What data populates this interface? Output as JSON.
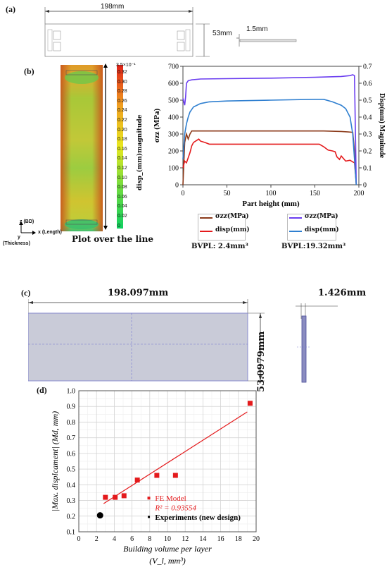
{
  "panel_a": {
    "label": "(a)",
    "length": "198mm",
    "width": "53mm",
    "thickness": "1.5mm"
  },
  "panel_b": {
    "label": "(b)",
    "colorbar_title": "disp_(mm)magnitude",
    "colorbar_top": "3.5×10⁻¹",
    "colorbar_ticks": [
      "0.32",
      "0.30",
      "0.28",
      "0.26",
      "0.24",
      "0.22",
      "0.20",
      "0.18",
      "0.16",
      "0.14",
      "0.12",
      "0.10",
      "0.08",
      "0.06",
      "0.04",
      "0.02",
      "0"
    ],
    "axis_z": "z (BD)",
    "axis_x": "x (Length)",
    "axis_y": "y",
    "axis_thickness": "(Thickness)",
    "plot_caption": "Plot over the line",
    "legend_left": [
      "σzz(MPa)",
      "disp(mm)"
    ],
    "legend_right": [
      "σzz(MPa)",
      "disp(mm)"
    ],
    "bvpl_left": "BVPL: 2.4mm³",
    "bvpl_right": "BVPL:19.32mm³",
    "colors": {
      "brown": "#8b3a1a",
      "red": "#e41a1c",
      "purple": "#6a3df0",
      "blue": "#2f7fd0"
    }
  },
  "panel_c": {
    "label": "(c)",
    "length": "198.097mm",
    "width": "53.0979mm",
    "thickness": "1.426mm"
  },
  "panel_d": {
    "label": "(d)"
  },
  "chart_data": [
    {
      "type": "line",
      "xlabel": "Part height (mm)",
      "ylabel": "σzz (MPa)",
      "y2label": "Disp(mm) Magnitude",
      "xlim": [
        0,
        200
      ],
      "ylim": [
        0,
        700
      ],
      "y2lim": [
        0,
        0.7
      ],
      "x_ticks": [
        0,
        50,
        100,
        150,
        200
      ],
      "y_ticks": [
        0,
        100,
        200,
        300,
        400,
        500,
        600,
        700
      ],
      "y2_ticks": [
        0,
        0.1,
        0.2,
        0.3,
        0.4,
        0.5,
        0.6,
        0.7
      ],
      "series": [
        {
          "name": "σzz(MPa)",
          "color": "#8b3a1a",
          "axis": "left",
          "x": [
            0,
            2,
            4,
            6,
            8,
            10,
            12,
            15,
            20,
            30,
            50,
            80,
            100,
            130,
            160,
            180,
            188,
            193,
            195,
            197
          ],
          "y": [
            0,
            250,
            300,
            270,
            300,
            318,
            318,
            318,
            318,
            318,
            318,
            318,
            318,
            318,
            318,
            315,
            312,
            310,
            200,
            0
          ]
        },
        {
          "name": "disp(mm)",
          "color": "#e41a1c",
          "axis": "left",
          "x": [
            0,
            2,
            4,
            6,
            8,
            10,
            12,
            15,
            18,
            20,
            25,
            30,
            40,
            60,
            80,
            100,
            130,
            155,
            160,
            165,
            170,
            173,
            175,
            178,
            180,
            185,
            190,
            193,
            195,
            197
          ],
          "y": [
            100,
            140,
            130,
            160,
            190,
            230,
            250,
            260,
            270,
            258,
            250,
            240,
            240,
            240,
            240,
            240,
            240,
            240,
            225,
            205,
            200,
            195,
            165,
            150,
            170,
            140,
            145,
            135,
            130,
            10
          ]
        },
        {
          "name": "σzz(MPa)",
          "color": "#6a3df0",
          "axis": "left",
          "x": [
            0,
            2,
            3,
            4,
            6,
            10,
            20,
            50,
            100,
            150,
            180,
            190,
            193,
            195,
            197
          ],
          "y": [
            510,
            470,
            520,
            600,
            615,
            620,
            625,
            627,
            630,
            635,
            640,
            645,
            650,
            645,
            0
          ]
        },
        {
          "name": "disp(mm)",
          "color": "#2f7fd0",
          "axis": "left",
          "x": [
            0,
            2,
            4,
            6,
            8,
            12,
            20,
            30,
            50,
            100,
            150,
            160,
            170,
            180,
            185,
            190,
            193,
            195,
            197
          ],
          "y": [
            150,
            300,
            360,
            400,
            430,
            460,
            480,
            490,
            495,
            500,
            505,
            505,
            490,
            470,
            450,
            400,
            300,
            150,
            0
          ]
        }
      ]
    },
    {
      "type": "scatter",
      "xlabel": "Building volume per layer",
      "xlabel2": "(V_l, mm³)",
      "ylabel": "|Max. displcament| (Md, mm)",
      "xlim": [
        0,
        20
      ],
      "ylim": [
        0.1,
        1.0
      ],
      "x_ticks": [
        0,
        2,
        4,
        6,
        8,
        10,
        12,
        14,
        16,
        18,
        20
      ],
      "y_ticks": [
        0.1,
        0.2,
        0.3,
        0.4,
        0.5,
        0.6,
        0.7,
        0.8,
        0.9,
        1.0
      ],
      "grid": true,
      "series": [
        {
          "name": "FE Model",
          "color": "#e41a1c",
          "marker": "square",
          "x": [
            3.0,
            4.1,
            5.1,
            6.6,
            8.8,
            10.9,
            19.32
          ],
          "y": [
            0.32,
            0.32,
            0.33,
            0.43,
            0.46,
            0.46,
            0.92
          ]
        },
        {
          "name": "Experiments (new design)",
          "color": "#000000",
          "marker": "circle",
          "x": [
            2.4
          ],
          "y": [
            0.205
          ]
        }
      ],
      "fit_line": {
        "x": [
          2.8,
          19.0
        ],
        "y": [
          0.28,
          0.865
        ]
      },
      "legend": [
        "FE Model",
        "Experiments (new design)"
      ],
      "r2": "R² = 0.93554"
    }
  ]
}
